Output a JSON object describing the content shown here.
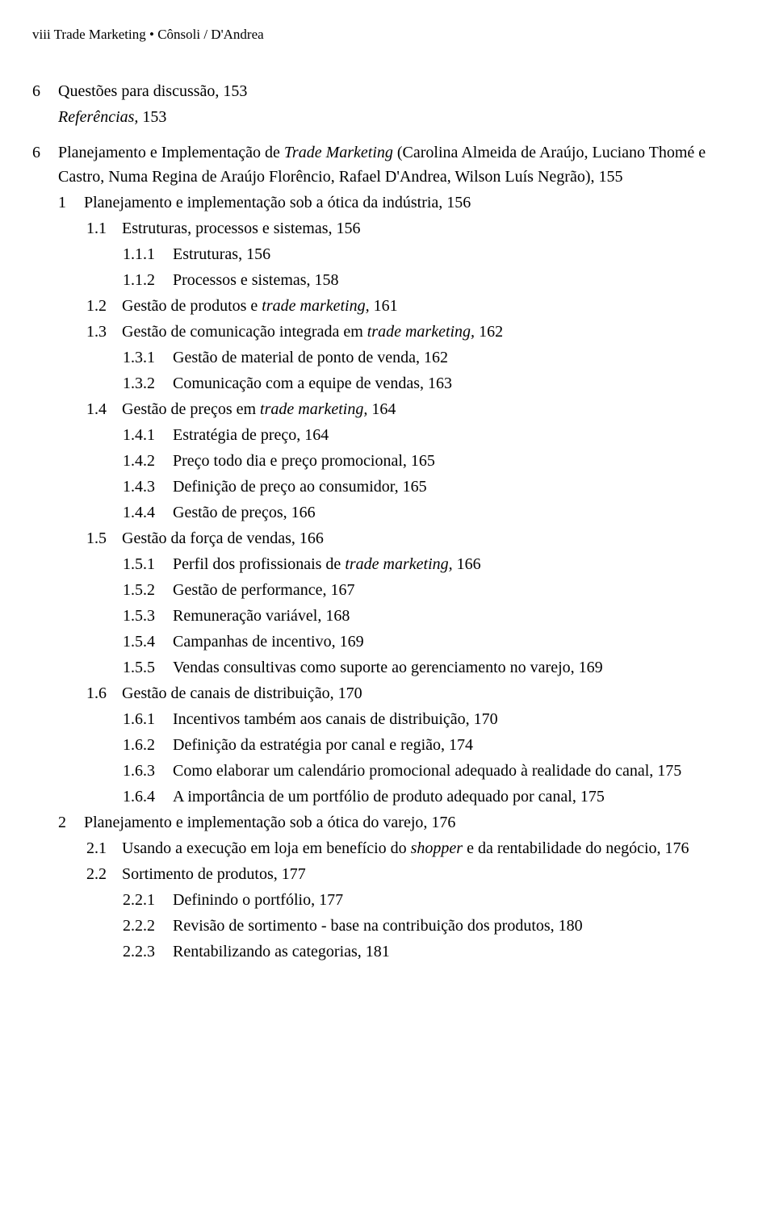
{
  "header": {
    "page_roman": "viii",
    "book_title": "Trade Marketing",
    "bullet": "• ",
    "authors": "Cônsoli / D'Andrea"
  },
  "prev_ch": {
    "num": "6",
    "questions_label": "Questões para discussão, 153",
    "refs_label": "Referências,",
    "refs_page": " 153"
  },
  "ch6": {
    "num": "6",
    "title_pre": "Planejamento e Implementação de ",
    "title_it": "Trade Marketing",
    "title_post": " (Carolina Almeida de Araújo, Luciano Thomé e Castro, Numa Regina de Araújo Florêncio, Rafael D'Andrea, Wilson Luís Negrão), 155"
  },
  "s1": {
    "num": "1",
    "txt": "Planejamento e implementação sob a ótica da indústria, 156",
    "s11": {
      "num": "1.1",
      "txt": "Estruturas, processos e sistemas, 156"
    },
    "s111": {
      "num": "1.1.1",
      "txt": "Estruturas, 156"
    },
    "s112": {
      "num": "1.1.2",
      "txt": "Processos e sistemas, 158"
    },
    "s12": {
      "num": "1.2",
      "pre": "Gestão de produtos e ",
      "it": "trade marketing,",
      "post": " 161"
    },
    "s13": {
      "num": "1.3",
      "pre": "Gestão de comunicação integrada em ",
      "it": "trade marketing,",
      "post": " 162"
    },
    "s131": {
      "num": "1.3.1",
      "txt": "Gestão de material de ponto de venda, 162"
    },
    "s132": {
      "num": "1.3.2",
      "txt": "Comunicação com a equipe de vendas, 163"
    },
    "s14": {
      "num": "1.4",
      "pre": "Gestão de preços em ",
      "it": "trade marketing,",
      "post": " 164"
    },
    "s141": {
      "num": "1.4.1",
      "txt": "Estratégia de preço, 164"
    },
    "s142": {
      "num": "1.4.2",
      "txt": "Preço todo dia e preço promocional, 165"
    },
    "s143": {
      "num": "1.4.3",
      "txt": "Definição de preço ao consumidor, 165"
    },
    "s144": {
      "num": "1.4.4",
      "txt": "Gestão de preços, 166"
    },
    "s15": {
      "num": "1.5",
      "txt": "Gestão da força de vendas, 166"
    },
    "s151": {
      "num": "1.5.1",
      "pre": "Perfil dos profissionais de ",
      "it": "trade marketing,",
      "post": " 166"
    },
    "s152": {
      "num": "1.5.2",
      "txt": "Gestão de performance, 167"
    },
    "s153": {
      "num": "1.5.3",
      "txt": "Remuneração variável, 168"
    },
    "s154": {
      "num": "1.5.4",
      "txt": "Campanhas de incentivo, 169"
    },
    "s155": {
      "num": "1.5.5",
      "txt": "Vendas consultivas como suporte ao gerenciamento no varejo, 169"
    },
    "s16": {
      "num": "1.6",
      "txt": "Gestão de canais de distribuição, 170"
    },
    "s161": {
      "num": "1.6.1",
      "txt": "Incentivos também aos canais de distribuição, 170"
    },
    "s162": {
      "num": "1.6.2",
      "txt": "Definição da estratégia por canal e região, 174"
    },
    "s163": {
      "num": "1.6.3",
      "txt": "Como elaborar um calendário promocional adequado à realidade do canal, 175"
    },
    "s164": {
      "num": "1.6.4",
      "txt": "A importância de um portfólio de produto adequado por canal, 175"
    }
  },
  "s2": {
    "num": "2",
    "txt": "Planejamento e implementação sob a ótica do varejo, 176",
    "s21": {
      "num": "2.1",
      "pre": "Usando a execução em loja em benefício do ",
      "it": "shopper",
      "post": " e da rentabilidade do negócio, 176"
    },
    "s22": {
      "num": "2.2",
      "txt": "Sortimento de produtos, 177"
    },
    "s221": {
      "num": "2.2.1",
      "txt": "Definindo o portfólio, 177"
    },
    "s222": {
      "num": "2.2.2",
      "txt": "Revisão de sortimento - base na contribuição dos produtos, 180"
    },
    "s223": {
      "num": "2.2.3",
      "txt": "Rentabilizando as categorias, 181"
    }
  }
}
